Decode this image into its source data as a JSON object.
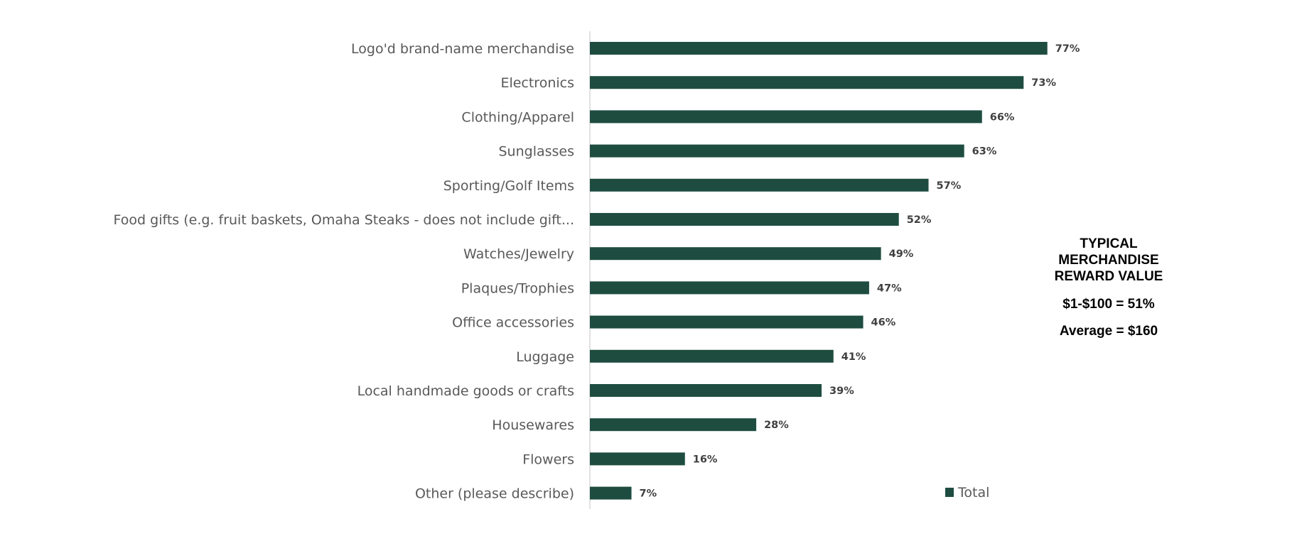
{
  "chart_data": {
    "type": "bar",
    "orientation": "horizontal",
    "categories": [
      "Logo'd brand-name merchandise",
      "Electronics",
      "Clothing/Apparel",
      "Sunglasses",
      "Sporting/Golf Items",
      "Food gifts (e.g. fruit baskets, Omaha Steaks - does not include gift...",
      "Watches/Jewelry",
      "Plaques/Trophies",
      "Office accessories",
      "Luggage",
      "Local handmade goods or crafts",
      "Housewares",
      "Flowers",
      "Other (please describe)"
    ],
    "series": [
      {
        "name": "Total",
        "values": [
          77,
          73,
          66,
          63,
          57,
          52,
          49,
          47,
          46,
          41,
          39,
          28,
          16,
          7
        ],
        "data_labels": [
          "77%",
          "73%",
          "66%",
          "63%",
          "57%",
          "52%",
          "49%",
          "47%",
          "46%",
          "41%",
          "39%",
          "28%",
          "16%",
          "7%"
        ]
      }
    ],
    "xlim": [
      0,
      100
    ],
    "grid": false,
    "legend": "bottom-right",
    "bar_color": "#1e4d40"
  },
  "callout": {
    "title_lines": [
      "TYPICAL",
      "MERCHANDISE",
      "REWARD VALUE"
    ],
    "stats": [
      "$1-$100 =  51%",
      "Average = $160"
    ]
  }
}
